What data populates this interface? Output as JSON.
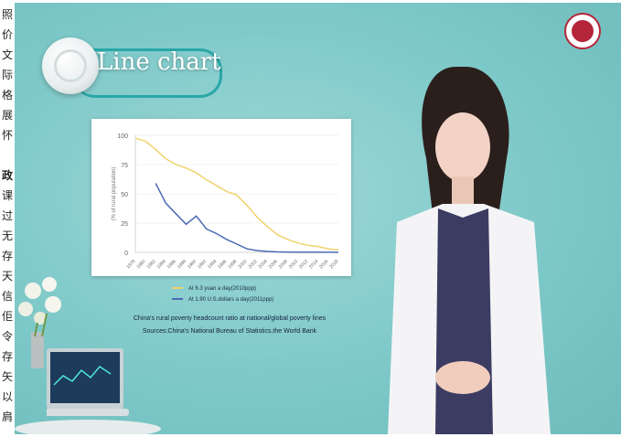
{
  "sidebar": {
    "chars": [
      "照",
      "价",
      "文",
      "际",
      "格",
      "展",
      "怀",
      "政",
      "课",
      "过",
      "无",
      "存",
      "天",
      "信",
      "佢",
      "令",
      "存",
      "矢",
      "以",
      "肩"
    ]
  },
  "video": {
    "title": "Line chart",
    "colors": {
      "background": "#7cc7c7",
      "accent": "#2aa7a7",
      "logo": "#b5263a"
    }
  },
  "chart_data": {
    "type": "line",
    "title": "China's rural poverty headcount ratio at national/global poverty lines",
    "source": "Sources:China's National Bureau of Statistics,the World Bank",
    "ylabel": "(% of rural population)",
    "ylim": [
      0,
      100
    ],
    "yticks": [
      "0",
      "25",
      "50",
      "75",
      "100"
    ],
    "x": [
      1978,
      1980,
      1982,
      1984,
      1986,
      1988,
      1990,
      1992,
      1994,
      1996,
      1998,
      2000,
      2002,
      2004,
      2006,
      2008,
      2010,
      2012,
      2014,
      2016,
      2018
    ],
    "xticks": [
      "1978",
      "1980",
      "1982",
      "1984",
      "1986",
      "1988",
      "1990",
      "1992",
      "1994",
      "1996",
      "1998",
      "2000",
      "2002",
      "2004",
      "2006",
      "2008",
      "2010",
      "2012",
      "2014",
      "2016",
      "2018"
    ],
    "series": [
      {
        "name": "At 6.3 yuan a day(2010ppp)",
        "color": "#f0d26a",
        "values": [
          97.5,
          95,
          88,
          80,
          75,
          72,
          68,
          62,
          57,
          52,
          49,
          40,
          30,
          22,
          15,
          11,
          8,
          6,
          5,
          3,
          2
        ]
      },
      {
        "name": "At 1.90 U.S.dollars a day(2011ppp)",
        "color": "#4a6bb5",
        "values": [
          null,
          null,
          59,
          42,
          33,
          24,
          31,
          20,
          16,
          11,
          7,
          3,
          1.5,
          0.8,
          0.4,
          0.2,
          0.1,
          0.1,
          0.1,
          0.1,
          0
        ]
      }
    ],
    "grid": true,
    "legend": "bottom"
  }
}
